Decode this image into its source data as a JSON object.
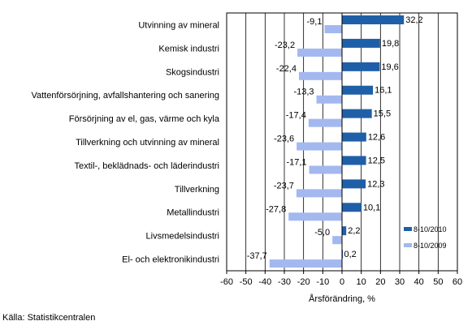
{
  "chart_data": {
    "type": "bar",
    "orientation": "horizontal",
    "categories": [
      "Utvinning av mineral",
      "Kemisk industri",
      "Skogsindustri",
      "Vattenförsörjning, avfallshantering och sanering",
      "Försörjning av el, gas, värme och kyla",
      "Tillverkning och utvinning av mineral",
      "Textil-, beklädnads- och läderindustri",
      "Tillverkning",
      "Metallindustri",
      "Livsmedelsindustri",
      "El- och elektronikindustri"
    ],
    "series": [
      {
        "name": "8-10/2010",
        "color": "#1f5fa8",
        "values": [
          32.2,
          19.8,
          19.6,
          16.1,
          15.5,
          12.6,
          12.5,
          12.3,
          10.1,
          2.2,
          0.2
        ],
        "labels": [
          "32,2",
          "19,8",
          "19,6",
          "16,1",
          "15,5",
          "12,6",
          "12,5",
          "12,3",
          "10,1",
          "2,2",
          "0,2"
        ]
      },
      {
        "name": "8-10/2009",
        "color": "#a3b8ee",
        "values": [
          -9.1,
          -23.2,
          -22.4,
          -13.3,
          -17.4,
          -23.6,
          -17.1,
          -23.7,
          -27.8,
          -5.0,
          -37.7
        ],
        "labels": [
          "-9,1",
          "-23,2",
          "-22,4",
          "-13,3",
          "-17,4",
          "-23,6",
          "-17,1",
          "-23,7",
          "-27,8",
          "-5,0",
          "-37,7"
        ]
      }
    ],
    "xlim": [
      -60,
      60
    ],
    "xticks": [
      -60,
      -50,
      -40,
      -30,
      -20,
      -10,
      0,
      10,
      20,
      30,
      40,
      50,
      60
    ],
    "xtick_labels": [
      "-60",
      "-50",
      "-40",
      "-30",
      "-20",
      "-10",
      "0",
      "10",
      "20",
      "30",
      "40",
      "50",
      "60"
    ],
    "xlabel": "Årsförändring, %",
    "grid": "vertical",
    "legend": "bottom-right",
    "source": "Källa: Statistikcentralen"
  }
}
